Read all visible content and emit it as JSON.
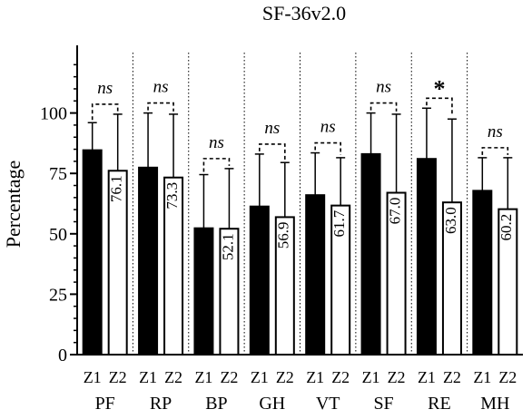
{
  "chart_data": {
    "type": "bar",
    "title": "SF-36v2.0",
    "ylabel": "Percentage",
    "xlabel": "",
    "ylim": [
      0,
      125
    ],
    "yticks": [
      0,
      25,
      50,
      75,
      100
    ],
    "categories": [
      "PF",
      "RP",
      "BP",
      "GH",
      "VT",
      "SF",
      "RE",
      "MH"
    ],
    "series": [
      {
        "name": "Z1",
        "color": "#000000",
        "values": [
          84.6,
          77.4,
          52.3,
          61.3,
          66.0,
          83.0,
          81.0,
          67.8
        ],
        "error_upper": [
          96,
          100,
          74.5,
          83,
          83.5,
          100,
          102,
          81.5
        ],
        "labels": [
          "84.6",
          "77.4",
          "52.3",
          "61.3",
          "66.0",
          "83.0",
          "81.0",
          "67.8"
        ]
      },
      {
        "name": "Z2",
        "color": "#ffffff",
        "values": [
          76.1,
          73.3,
          52.1,
          56.9,
          61.7,
          67.0,
          63.0,
          60.2
        ],
        "error_upper": [
          99.5,
          99.5,
          77,
          79.5,
          81.5,
          99.5,
          97.5,
          81.5
        ],
        "labels": [
          "76.1",
          "73.3",
          "52.1",
          "56.9",
          "61.7",
          "67.0",
          "63.0",
          "60.2"
        ]
      }
    ],
    "significance": [
      "ns",
      "ns",
      "ns",
      "ns",
      "ns",
      "ns",
      "*",
      "ns"
    ],
    "grid": false,
    "group_separators": "dotted"
  }
}
